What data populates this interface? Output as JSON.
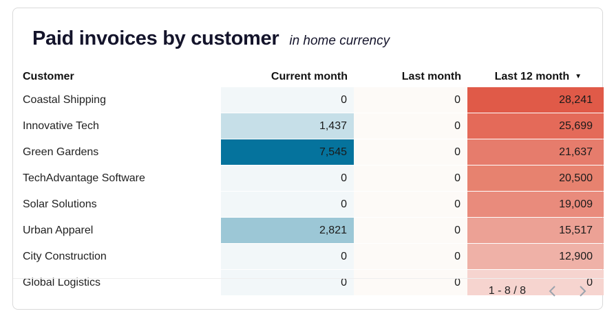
{
  "header": {
    "title": "Paid invoices by customer",
    "subtitle": "in home currency"
  },
  "table": {
    "columns": {
      "customer": "Customer",
      "current": "Current month",
      "last": "Last month",
      "last12": "Last 12 month"
    },
    "sort_icon": "sort-descending-icon",
    "rows": [
      {
        "customer": "Coastal Shipping",
        "current": "0",
        "last": "0",
        "last12": "28,241",
        "current_bg": "#f2f7f9",
        "last_bg": "#fdfaf7",
        "last12_bg": "#e05a48"
      },
      {
        "customer": "Innovative Tech",
        "current": "1,437",
        "last": "0",
        "last12": "25,699",
        "current_bg": "#c6dfe8",
        "last_bg": "#fdfaf7",
        "last12_bg": "#e46a59"
      },
      {
        "customer": "Green Gardens",
        "current": "7,545",
        "last": "0",
        "last12": "21,637",
        "current_bg": "#05739d",
        "last_bg": "#fdfaf7",
        "last12_bg": "#e67c6c"
      },
      {
        "customer": "TechAdvantage Software",
        "current": "0",
        "last": "0",
        "last12": "20,500",
        "current_bg": "#f2f7f9",
        "last_bg": "#fdfaf7",
        "last12_bg": "#e7826f"
      },
      {
        "customer": "Solar Solutions",
        "current": "0",
        "last": "0",
        "last12": "19,009",
        "current_bg": "#f2f7f9",
        "last_bg": "#fdfaf7",
        "last12_bg": "#e98b7c"
      },
      {
        "customer": "Urban Apparel",
        "current": "2,821",
        "last": "0",
        "last12": "15,517",
        "current_bg": "#9cc7d6",
        "last_bg": "#fdfaf7",
        "last12_bg": "#eca195"
      },
      {
        "customer": "City Construction",
        "current": "0",
        "last": "0",
        "last12": "12,900",
        "current_bg": "#f2f7f9",
        "last_bg": "#fdfaf7",
        "last12_bg": "#efb1a7"
      },
      {
        "customer": "Global Logistics",
        "current": "0",
        "last": "0",
        "last12": "0",
        "current_bg": "#f2f7f9",
        "last_bg": "#fdfaf7",
        "last12_bg": "#f6d4cf"
      }
    ]
  },
  "pagination": {
    "label": "1 - 8 / 8",
    "prev_icon": "chevron-left-icon",
    "next_icon": "chevron-right-icon"
  },
  "colors": {
    "text": "#1a1a1a",
    "title": "#14142b",
    "dark_cell_text": "#ffffff",
    "pager_icon": "#9aa3ad"
  }
}
